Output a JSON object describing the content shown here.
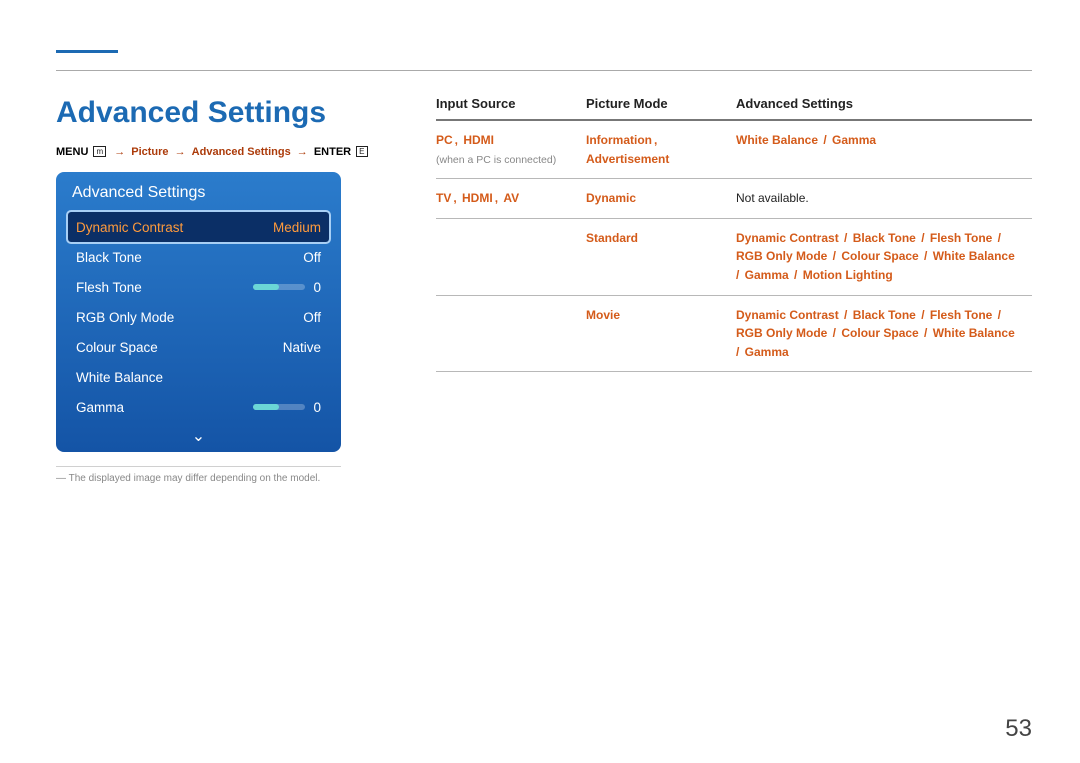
{
  "colors": {
    "accent_blue": "#1c6ab3",
    "accent_orange": "#d45b1a",
    "panel_gradient_top": "#2b7ccc",
    "panel_gradient_bottom": "#1454a6",
    "panel_selected_bg": "#0b2f66",
    "panel_selected_text": "#ff9a3c",
    "slider_fill": "#6bd6d6"
  },
  "page_number": "53",
  "heading": "Advanced Settings",
  "breadcrumb": {
    "menu_label": "MENU",
    "menu_icon": "m",
    "arrow": "→",
    "crumb1": "Picture",
    "crumb2": "Advanced Settings",
    "enter_label": "ENTER",
    "enter_icon": "E"
  },
  "panel": {
    "title": "Advanced Settings",
    "rows": [
      {
        "label": "Dynamic Contrast",
        "value": "Medium",
        "selected": true,
        "slider": false
      },
      {
        "label": "Black Tone",
        "value": "Off",
        "selected": false,
        "slider": false
      },
      {
        "label": "Flesh Tone",
        "value": "0",
        "selected": false,
        "slider": true
      },
      {
        "label": "RGB Only Mode",
        "value": "Off",
        "selected": false,
        "slider": false
      },
      {
        "label": "Colour Space",
        "value": "Native",
        "selected": false,
        "slider": false
      },
      {
        "label": "White Balance",
        "value": "",
        "selected": false,
        "slider": false
      },
      {
        "label": "Gamma",
        "value": "0",
        "selected": false,
        "slider": true
      }
    ],
    "more_indicator": "⌄"
  },
  "footnote": "The displayed image may differ depending on the model.",
  "table": {
    "headers": [
      "Input Source",
      "Picture Mode",
      "Advanced Settings"
    ],
    "rows": [
      {
        "input_source": {
          "terms": [
            "PC",
            "HDMI"
          ],
          "paren": "(when a PC is connected)"
        },
        "picture_mode": {
          "terms": [
            "Information",
            "Advertisement"
          ]
        },
        "advanced": {
          "terms": [
            "White Balance",
            "Gamma"
          ]
        }
      },
      {
        "input_source": {
          "terms": [
            "TV",
            "HDMI",
            "AV"
          ]
        },
        "picture_mode": {
          "terms": [
            "Dynamic"
          ]
        },
        "advanced": {
          "plain": "Not available."
        }
      },
      {
        "input_source": {},
        "picture_mode": {
          "terms": [
            "Standard"
          ]
        },
        "advanced": {
          "terms": [
            "Dynamic Contrast",
            "Black Tone",
            "Flesh Tone",
            "RGB Only Mode",
            "Colour Space",
            "White Balance",
            "Gamma",
            "Motion Lighting"
          ]
        }
      },
      {
        "input_source": {},
        "picture_mode": {
          "terms": [
            "Movie"
          ]
        },
        "advanced": {
          "terms": [
            "Dynamic Contrast",
            "Black Tone",
            "Flesh Tone",
            "RGB Only Mode",
            "Colour Space",
            "White Balance",
            "Gamma"
          ]
        }
      }
    ]
  }
}
